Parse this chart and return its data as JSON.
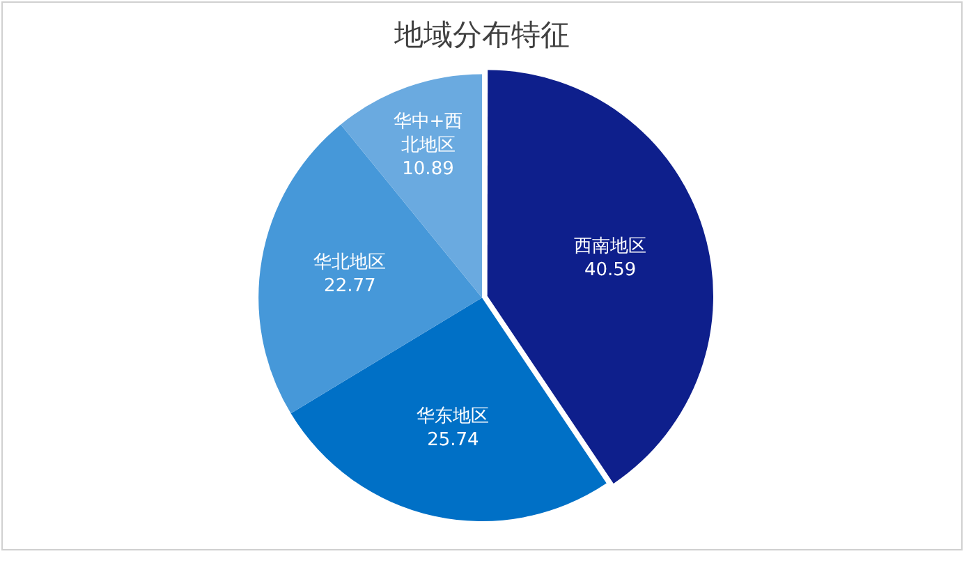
{
  "chart_data": {
    "type": "pie",
    "title": "地域分布特征",
    "categories": [
      "西南地区",
      "华东地区",
      "华北地区",
      "华中+西北地区"
    ],
    "values": [
      40.59,
      25.74,
      22.77,
      10.89
    ],
    "colors": [
      "#0e1f8c",
      "#0070c6",
      "#4698d9",
      "#6aaae0"
    ],
    "data_labels": true,
    "legend": false
  }
}
